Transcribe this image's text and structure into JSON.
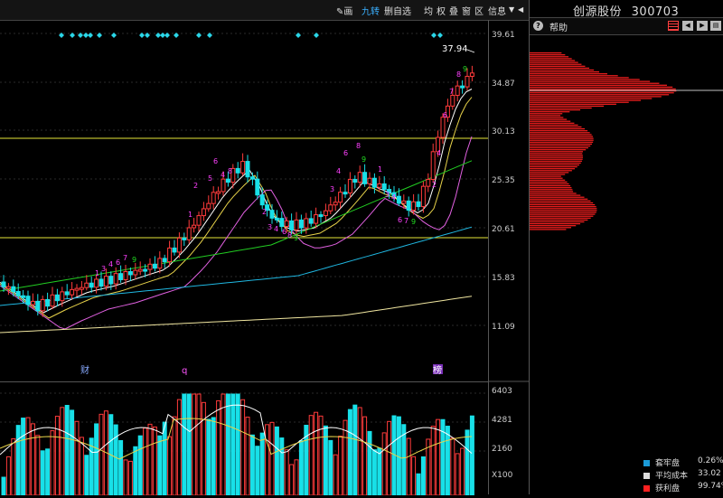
{
  "toolbar": {
    "items": [
      "画",
      "九转",
      "删自选",
      "均",
      "权",
      "叠",
      "窗",
      "区",
      "信息"
    ],
    "active_index": 1
  },
  "stock": {
    "name": "创源股份",
    "code": "300703"
  },
  "help_label": "帮助",
  "price_axis": [
    "39.61",
    "34.87",
    "30.13",
    "25.35",
    "20.61",
    "15.83",
    "11.09"
  ],
  "volume_axis": [
    "6403",
    "4281",
    "2160",
    "X100"
  ],
  "price_annotation": "37.94",
  "markers": [
    "财",
    "q",
    "榜"
  ],
  "legend": [
    {
      "label": "套牢盘",
      "value": "0.26%",
      "color": "#1b9bd8"
    },
    {
      "label": "平均成本",
      "value": "33.02",
      "color": "#dddddd"
    },
    {
      "label": "获利盘",
      "value": "99.74%",
      "color": "#ff2020"
    }
  ],
  "colors": {
    "up": "#ff3b3b",
    "down": "#18e0e8",
    "support": "#e6e637",
    "grid": "#3a3a3a"
  },
  "icons": [
    "info-icon",
    "profile-chart-icon",
    "back-icon",
    "forward-icon",
    "dropdown-icon",
    "return-icon"
  ]
}
